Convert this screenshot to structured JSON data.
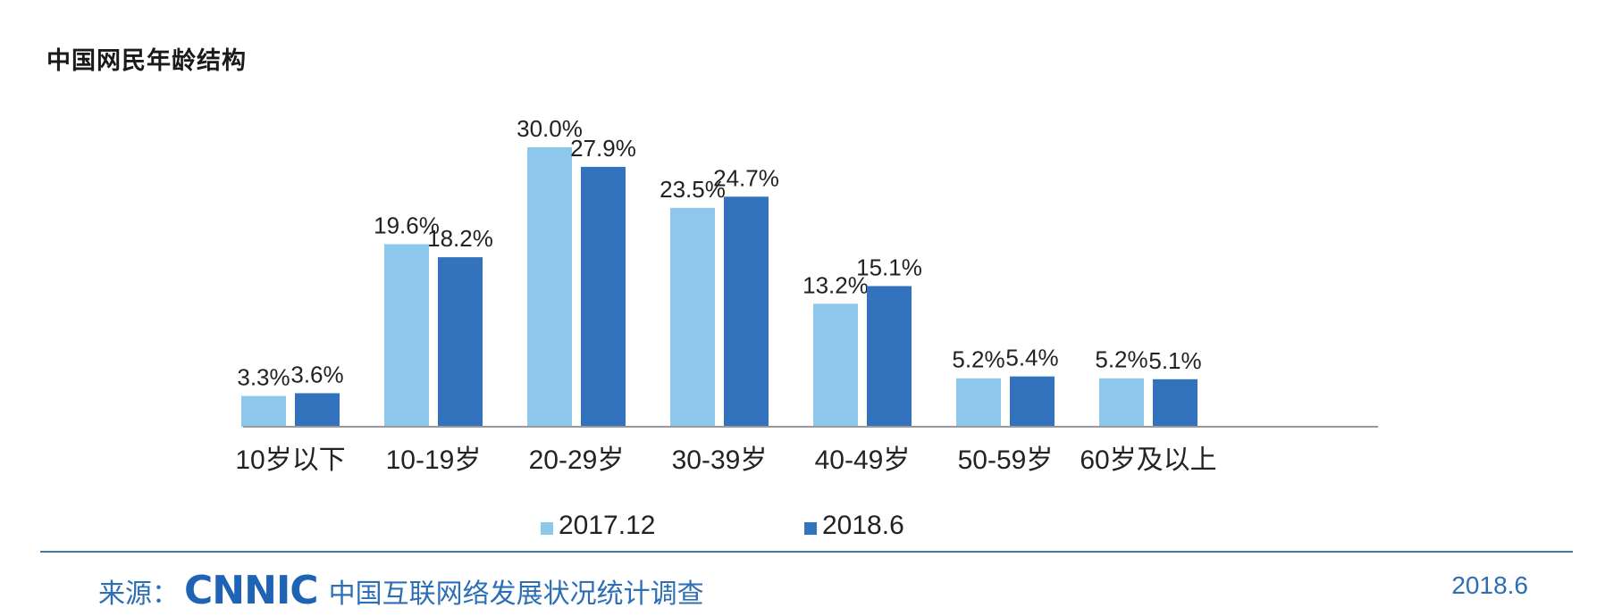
{
  "title": "中国网民年龄结构",
  "chart_data": {
    "type": "bar",
    "title": "中国网民年龄结构",
    "categories": [
      "10岁以下",
      "10-19岁",
      "20-29岁",
      "30-39岁",
      "40-49岁",
      "50-59岁",
      "60岁及以上"
    ],
    "series": [
      {
        "name": "2017.12",
        "color": "#8DC8EC",
        "values": [
          3.3,
          19.6,
          30.0,
          23.5,
          13.2,
          5.2,
          5.2
        ],
        "labels": [
          "3.3%",
          "19.6%",
          "30.0%",
          "23.5%",
          "13.2%",
          "5.2%",
          "5.2%"
        ]
      },
      {
        "name": "2018.6",
        "color": "#3372BC",
        "values": [
          3.6,
          18.2,
          27.9,
          24.7,
          15.1,
          5.4,
          5.1
        ],
        "labels": [
          "3.6%",
          "18.2%",
          "27.9%",
          "24.7%",
          "15.1%",
          "5.4%",
          "5.1%"
        ]
      }
    ],
    "xlabel": "",
    "ylabel": "",
    "ylim": [
      0,
      30
    ],
    "grid": false,
    "legend": "bottom"
  },
  "footer": {
    "source_label": "来源：",
    "logo_text": "CNNIC",
    "survey_name": "中国互联网络发展状况统计调查",
    "date": "2018.6"
  }
}
